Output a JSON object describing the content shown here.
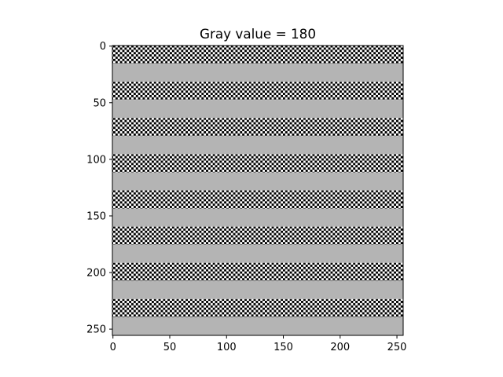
{
  "chart_data": {
    "type": "heatmap",
    "title": "Gray value = 180",
    "xlabel": "",
    "ylabel": "",
    "image_size": [
      256,
      256
    ],
    "gray_value": 180,
    "gray_color": "#b4b4b4",
    "checker_colors": [
      "#000000",
      "#ffffff"
    ],
    "checker_cell": 2,
    "band_height": 16,
    "pattern": "alternating horizontal bands starting at row 0: rows 0-15 black/white checkerboard, rows 16-31 uniform gray (180), repeating",
    "xlim": [
      0,
      256
    ],
    "ylim": [
      256,
      0
    ],
    "x_ticks": [
      0,
      50,
      100,
      150,
      200,
      250
    ],
    "y_ticks": [
      0,
      50,
      100,
      150,
      200,
      250
    ],
    "x_tick_labels": [
      "0",
      "50",
      "100",
      "150",
      "200",
      "250"
    ],
    "y_tick_labels": [
      "0",
      "50",
      "100",
      "150",
      "200",
      "250"
    ],
    "grid": false
  }
}
